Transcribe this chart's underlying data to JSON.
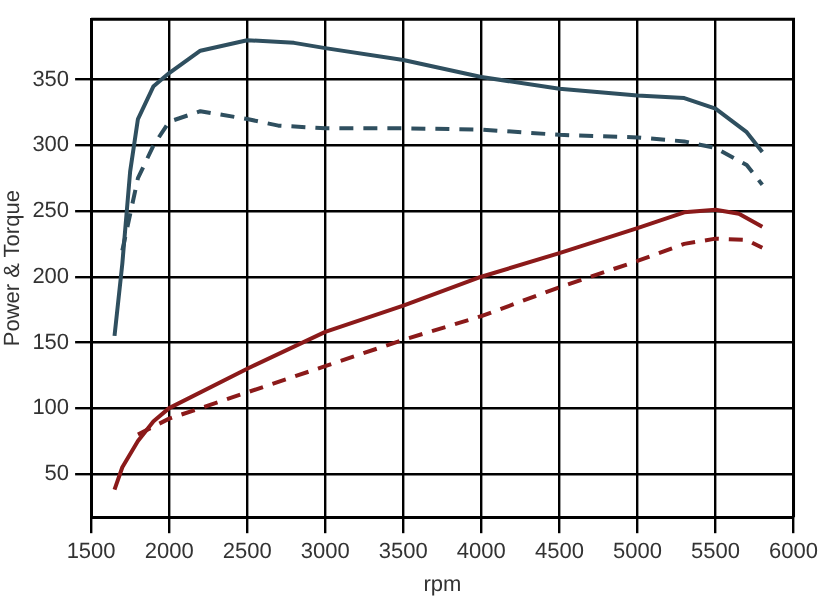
{
  "chart_data": {
    "type": "line",
    "xlabel": "rpm",
    "ylabel": "Power & Torque",
    "xlim": [
      1500,
      6000
    ],
    "xticks": [
      1500,
      2000,
      2500,
      3000,
      3500,
      4000,
      4500,
      5000,
      5500,
      6000
    ],
    "ylim": [
      17,
      396
    ],
    "yticks": [
      50,
      100,
      150,
      200,
      250,
      300,
      350
    ],
    "grid": true,
    "marker": "none",
    "series": [
      {
        "color": "#2f4f5f",
        "line_style": "solid",
        "x": [
          1650,
          1700,
          1750,
          1800,
          1900,
          2000,
          2200,
          2500,
          2800,
          3000,
          3500,
          4000,
          4500,
          5000,
          5300,
          5500,
          5700,
          5800
        ],
        "values": [
          155,
          210,
          280,
          320,
          345,
          355,
          372,
          380,
          378,
          374,
          365,
          352,
          343,
          338,
          336,
          328,
          310,
          295
        ]
      },
      {
        "color": "#2f4f5f",
        "line_style": "dashed",
        "x": [
          1700,
          1800,
          1900,
          2000,
          2200,
          2500,
          2700,
          3000,
          3500,
          4000,
          4500,
          5000,
          5300,
          5500,
          5700,
          5800
        ],
        "values": [
          220,
          275,
          300,
          318,
          326,
          320,
          315,
          313,
          313,
          312,
          308,
          306,
          303,
          298,
          285,
          270
        ]
      },
      {
        "color": "#8b1a1a",
        "line_style": "solid",
        "x": [
          1650,
          1700,
          1800,
          1900,
          2000,
          2500,
          3000,
          3500,
          4000,
          4500,
          5000,
          5300,
          5500,
          5650,
          5800
        ],
        "values": [
          38,
          55,
          75,
          90,
          100,
          130,
          158,
          178,
          200,
          218,
          237,
          249,
          251,
          248,
          238
        ]
      },
      {
        "color": "#8b1a1a",
        "line_style": "dashed",
        "x": [
          1800,
          2000,
          2500,
          3000,
          3500,
          4000,
          4500,
          5000,
          5300,
          5500,
          5700,
          5800
        ],
        "values": [
          80,
          92,
          112,
          132,
          152,
          170,
          192,
          212,
          225,
          229,
          228,
          222
        ]
      }
    ]
  }
}
